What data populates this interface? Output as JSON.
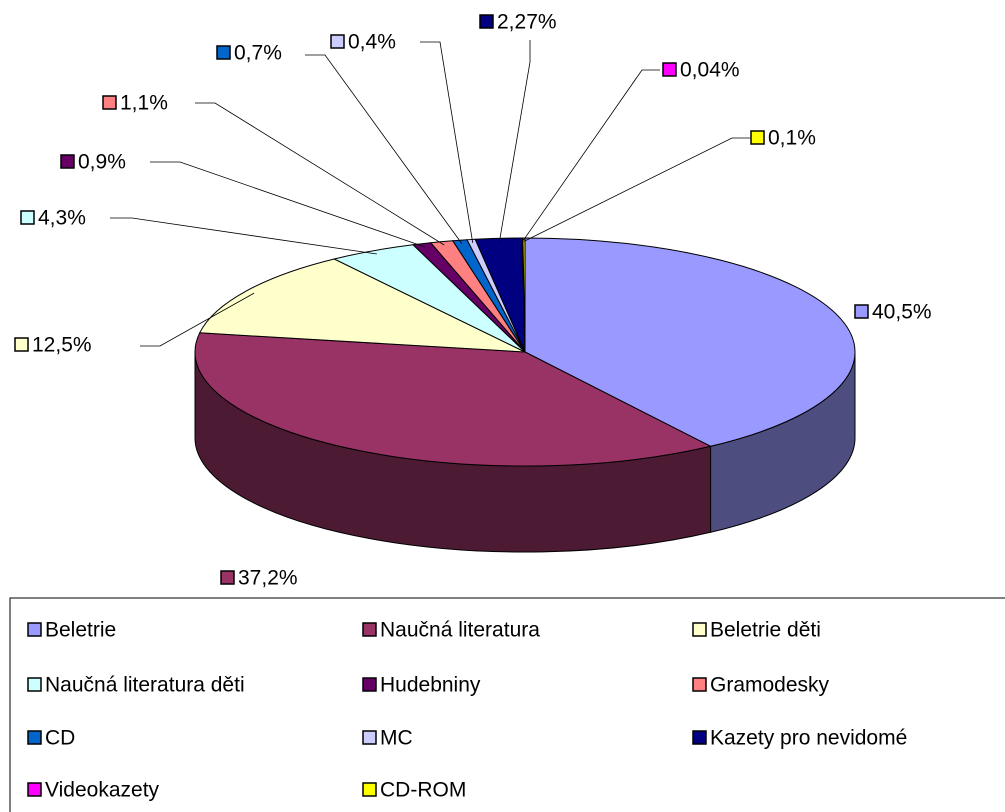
{
  "chart_data": {
    "type": "pie3d",
    "categories": [
      "Beletrie",
      "Naučná literatura",
      "Beletrie děti",
      "Naučná literatura děti",
      "Hudebniny",
      "Gramodesky",
      "CD",
      "MC",
      "Kazety pro nevidomé",
      "Videokazety",
      "CD-ROM"
    ],
    "values": [
      40.5,
      37.2,
      12.5,
      4.3,
      0.9,
      1.1,
      0.7,
      0.4,
      2.27,
      0.04,
      0.1
    ],
    "value_labels": [
      "40,5%",
      "37,2%",
      "12,5%",
      "4,3%",
      "0,9%",
      "1,1%",
      "0,7%",
      "0,4%",
      "2,27%",
      "0,04%",
      "0,1%"
    ],
    "colors": [
      "#9999ff",
      "#993366",
      "#ffffcc",
      "#ccffff",
      "#660066",
      "#ff8080",
      "#0066cc",
      "#ccccff",
      "#000080",
      "#ff00ff",
      "#ffff00"
    ],
    "legend": "bottom"
  }
}
